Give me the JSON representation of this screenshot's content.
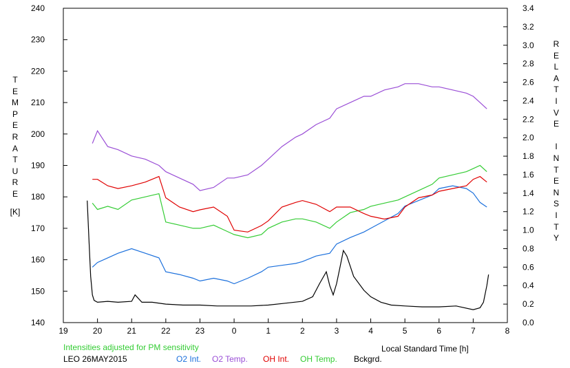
{
  "chart_data": {
    "type": "line",
    "title": "",
    "xlabel": "Local Standard Time [h]",
    "ylabel_left": "TEMPERATURE",
    "ylabel_left_unit": "[K]",
    "ylabel_right": "RELATIVE INTENSITY",
    "x_ticks": [
      "19",
      "20",
      "21",
      "22",
      "23",
      "0",
      "1",
      "2",
      "3",
      "4",
      "5",
      "6",
      "7",
      "8"
    ],
    "xlim": [
      19,
      32
    ],
    "y_left_ticks": [
      "140",
      "150",
      "160",
      "170",
      "180",
      "190",
      "200",
      "210",
      "220",
      "230",
      "240"
    ],
    "y_left_lim": [
      140,
      240
    ],
    "y_right_ticks": [
      "0.0",
      "0.2",
      "0.4",
      "0.6",
      "0.8",
      "1.0",
      "1.2",
      "1.4",
      "1.6",
      "1.8",
      "2.0",
      "2.2",
      "2.4",
      "2.6",
      "2.8",
      "3.0",
      "3.2",
      "3.4"
    ],
    "y_right_lim": [
      0,
      3.4
    ],
    "note": "Intensities adjusted for PM sensitivity",
    "station_date": "LEO 26MAY2015",
    "grid": false,
    "legend_placement": "bottom",
    "series": [
      {
        "name": "O2 Int.",
        "axis": "right",
        "color": "#1a6fdc",
        "x": [
          19.85,
          20.0,
          20.3,
          20.6,
          21.0,
          21.4,
          21.8,
          22.0,
          22.4,
          22.8,
          23.0,
          23.4,
          23.8,
          24.0,
          24.4,
          24.8,
          25.0,
          25.4,
          25.8,
          26.0,
          26.4,
          26.8,
          27.0,
          27.4,
          27.8,
          28.0,
          28.4,
          28.8,
          29.0,
          29.4,
          29.8,
          30.0,
          30.4,
          30.8,
          31.0,
          31.2,
          31.4
        ],
        "values": [
          0.6,
          0.65,
          0.7,
          0.75,
          0.8,
          0.75,
          0.7,
          0.55,
          0.52,
          0.48,
          0.45,
          0.48,
          0.45,
          0.42,
          0.48,
          0.55,
          0.6,
          0.62,
          0.64,
          0.66,
          0.72,
          0.75,
          0.85,
          0.92,
          0.98,
          1.02,
          1.1,
          1.18,
          1.26,
          1.32,
          1.38,
          1.45,
          1.48,
          1.45,
          1.4,
          1.3,
          1.25
        ]
      },
      {
        "name": "O2 Temp.",
        "axis": "left",
        "color": "#9a4ed6",
        "x": [
          19.85,
          20.0,
          20.3,
          20.6,
          21.0,
          21.4,
          21.8,
          22.0,
          22.4,
          22.8,
          23.0,
          23.4,
          23.8,
          24.0,
          24.4,
          24.8,
          25.0,
          25.4,
          25.8,
          26.0,
          26.4,
          26.8,
          27.0,
          27.4,
          27.8,
          28.0,
          28.4,
          28.8,
          29.0,
          29.4,
          29.8,
          30.0,
          30.4,
          30.8,
          31.0,
          31.2,
          31.4
        ],
        "values": [
          197,
          201,
          196,
          195,
          193,
          192,
          190,
          188,
          186,
          184,
          182,
          183,
          186,
          186,
          187,
          190,
          192,
          196,
          199,
          200,
          203,
          205,
          208,
          210,
          212,
          212,
          214,
          215,
          216,
          216,
          215,
          215,
          214,
          213,
          212,
          210,
          208
        ]
      },
      {
        "name": "OH Int.",
        "axis": "right",
        "color": "#e00000",
        "x": [
          19.85,
          20.0,
          20.3,
          20.6,
          21.0,
          21.4,
          21.8,
          22.0,
          22.4,
          22.8,
          23.0,
          23.4,
          23.8,
          24.0,
          24.4,
          24.8,
          25.0,
          25.4,
          25.8,
          26.0,
          26.4,
          26.8,
          27.0,
          27.4,
          27.8,
          28.0,
          28.4,
          28.8,
          29.0,
          29.4,
          29.8,
          30.0,
          30.4,
          30.8,
          31.0,
          31.2,
          31.4
        ],
        "values": [
          1.55,
          1.55,
          1.48,
          1.45,
          1.48,
          1.52,
          1.58,
          1.35,
          1.25,
          1.2,
          1.22,
          1.25,
          1.15,
          1.0,
          0.98,
          1.05,
          1.1,
          1.25,
          1.3,
          1.32,
          1.28,
          1.2,
          1.25,
          1.25,
          1.18,
          1.15,
          1.12,
          1.15,
          1.25,
          1.35,
          1.38,
          1.42,
          1.45,
          1.48,
          1.55,
          1.58,
          1.52
        ]
      },
      {
        "name": "OH Temp.",
        "axis": "left",
        "color": "#33cc33",
        "x": [
          19.85,
          20.0,
          20.3,
          20.6,
          21.0,
          21.4,
          21.8,
          22.0,
          22.4,
          22.8,
          23.0,
          23.4,
          23.8,
          24.0,
          24.4,
          24.8,
          25.0,
          25.4,
          25.8,
          26.0,
          26.4,
          26.8,
          27.0,
          27.4,
          27.8,
          28.0,
          28.4,
          28.8,
          29.0,
          29.4,
          29.8,
          30.0,
          30.4,
          30.8,
          31.0,
          31.2,
          31.4
        ],
        "values": [
          178,
          176,
          177,
          176,
          179,
          180,
          181,
          172,
          171,
          170,
          170,
          171,
          169,
          168,
          167,
          168,
          170,
          172,
          173,
          173,
          172,
          170,
          172,
          175,
          176,
          177,
          178,
          179,
          180,
          182,
          184,
          186,
          187,
          188,
          189,
          190,
          188
        ]
      },
      {
        "name": "Bckgrd.",
        "axis": "right",
        "color": "#000000",
        "x": [
          19.7,
          19.75,
          19.8,
          19.85,
          19.9,
          20.0,
          20.3,
          20.6,
          21.0,
          21.1,
          21.3,
          21.6,
          22.0,
          22.5,
          23.0,
          23.5,
          24.0,
          24.5,
          25.0,
          25.5,
          26.0,
          26.3,
          26.5,
          26.7,
          26.8,
          26.9,
          27.0,
          27.1,
          27.2,
          27.3,
          27.5,
          27.8,
          28.0,
          28.3,
          28.6,
          29.0,
          29.5,
          30.0,
          30.5,
          31.0,
          31.2,
          31.3,
          31.4,
          31.45
        ],
        "values": [
          1.32,
          0.9,
          0.5,
          0.3,
          0.24,
          0.22,
          0.23,
          0.22,
          0.23,
          0.3,
          0.22,
          0.22,
          0.2,
          0.19,
          0.19,
          0.18,
          0.18,
          0.18,
          0.19,
          0.21,
          0.23,
          0.28,
          0.42,
          0.55,
          0.4,
          0.3,
          0.42,
          0.6,
          0.78,
          0.72,
          0.5,
          0.35,
          0.28,
          0.22,
          0.19,
          0.18,
          0.17,
          0.17,
          0.18,
          0.14,
          0.16,
          0.22,
          0.4,
          0.52
        ]
      }
    ]
  }
}
